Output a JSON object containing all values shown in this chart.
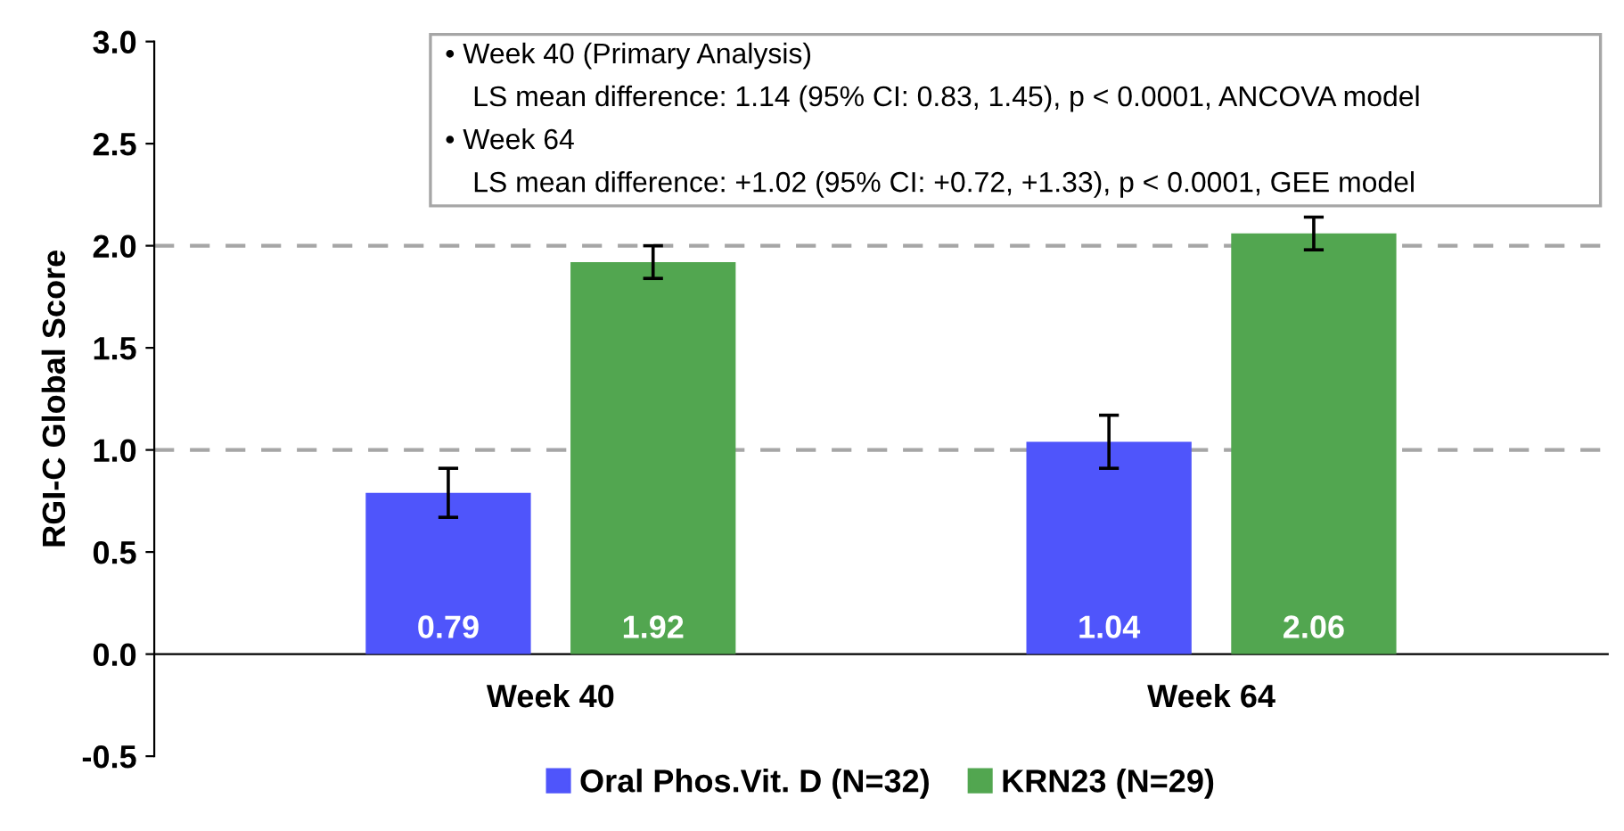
{
  "chart_data": {
    "type": "bar",
    "ylabel": "RGI-C Global Score",
    "categories": [
      "Week 40",
      "Week 64"
    ],
    "series": [
      {
        "name": "Oral Phos.Vit. D (N=32)",
        "color": "#4f55fb",
        "values": [
          0.79,
          1.04
        ],
        "errors": [
          0.12,
          0.13
        ]
      },
      {
        "name": "KRN23 (N=29)",
        "color": "#52a650",
        "values": [
          1.92,
          2.06
        ],
        "errors": [
          0.08,
          0.08
        ]
      }
    ],
    "data_labels": true,
    "ylim": [
      -0.5,
      3.0
    ],
    "yticks": [
      {
        "value": -0.5,
        "label": "-0.5"
      },
      {
        "value": 0,
        "label": "0.0"
      },
      {
        "value": 0.5,
        "label": "0.5"
      },
      {
        "value": 1,
        "label": "1.0"
      },
      {
        "value": 1.5,
        "label": "1.5"
      },
      {
        "value": 2,
        "label": "2.0"
      },
      {
        "value": 2.5,
        "label": "2.5"
      },
      {
        "value": 3,
        "label": "3.0"
      }
    ],
    "ref_lines": [
      {
        "axis": "y",
        "value": 1,
        "color": "#a6a6a6",
        "line_style": "dashed"
      },
      {
        "axis": "y",
        "value": 2,
        "color": "#a6a6a6",
        "line_style": "dashed"
      }
    ],
    "annotations": [
      "• Week 40 (Primary Analysis)",
      "LS mean difference: 1.14 (95% CI: 0.83, 1.45), p < 0.0001, ANCOVA model",
      "• Week 64",
      "LS mean difference: +1.02 (95% CI: +0.72, +1.33), p < 0.0001, GEE model"
    ],
    "legend": "bottom",
    "grid": false
  }
}
